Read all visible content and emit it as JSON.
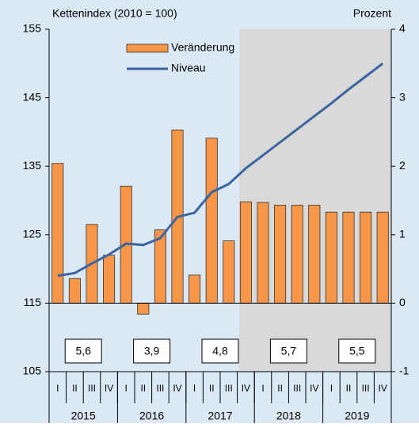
{
  "chart_data": {
    "type": "bar_line",
    "y_title": "Kettenindex (2010 = 100)",
    "y2_title": "Prozent",
    "categories": [
      "I",
      "II",
      "III",
      "IV",
      "I",
      "II",
      "III",
      "IV",
      "I",
      "II",
      "III",
      "IV",
      "I",
      "II",
      "III",
      "IV",
      "I",
      "II",
      "III",
      "IV"
    ],
    "years": [
      "2015",
      "2016",
      "2017",
      "2018",
      "2019"
    ],
    "series": [
      {
        "name": "Veränderung",
        "type": "bar",
        "axis": "y2",
        "color": "#f79646",
        "values": [
          2.04,
          0.36,
          1.15,
          0.7,
          1.71,
          -0.16,
          1.07,
          2.53,
          0.41,
          2.41,
          0.91,
          1.48,
          1.47,
          1.43,
          1.43,
          1.43,
          1.33,
          1.33,
          1.33,
          1.33
        ]
      },
      {
        "name": "Niveau",
        "type": "line",
        "axis": "y",
        "color": "#3c64a0",
        "values": [
          119.0,
          119.4,
          120.8,
          122.1,
          123.7,
          123.5,
          124.5,
          127.6,
          128.2,
          131.2,
          132.4,
          134.7,
          136.6,
          138.5,
          140.4,
          142.3,
          144.2,
          146.2,
          148.1,
          150.0
        ]
      }
    ],
    "annual": {
      "values": [
        5.6,
        3.9,
        4.8,
        5.7,
        5.5
      ],
      "value_labels": [
        "5,6",
        "3,9",
        "4,8",
        "5,7",
        "5,5"
      ]
    },
    "ylim": [
      105,
      155
    ],
    "yticks": [
      105,
      115,
      125,
      135,
      145,
      155
    ],
    "y2lim": [
      -1,
      4
    ],
    "y2ticks": [
      -1,
      0,
      1,
      2,
      3,
      4
    ]
  }
}
